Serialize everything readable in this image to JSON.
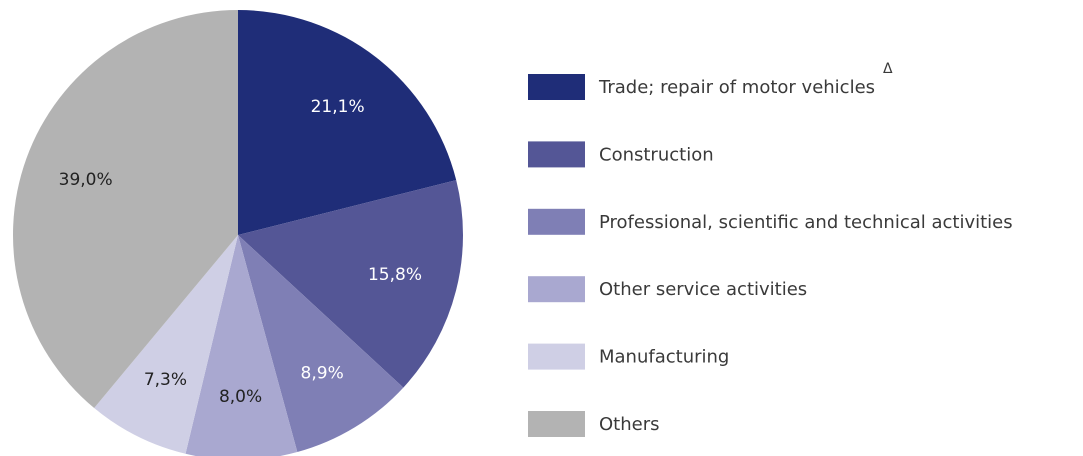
{
  "chart_data": {
    "type": "pie",
    "categories": [
      "Trade; repair of motor vehicles",
      "Construction",
      "Professional, scientific and technical activities",
      "Other service activities",
      "Manufacturing",
      "Others"
    ],
    "values": [
      21.1,
      15.8,
      8.9,
      8.0,
      7.3,
      39.0
    ],
    "value_labels": [
      "21,1%",
      "15,8%",
      "8,9%",
      "8,0%",
      "7,3%",
      "39,0%"
    ],
    "colors": [
      "#1f2d78",
      "#545696",
      "#7f7fb5",
      "#a9a8d0",
      "#cfcfe5",
      "#b3b3b3"
    ],
    "legend": "right",
    "annotations": [
      {
        "text": "Δ",
        "category": 0
      }
    ]
  }
}
